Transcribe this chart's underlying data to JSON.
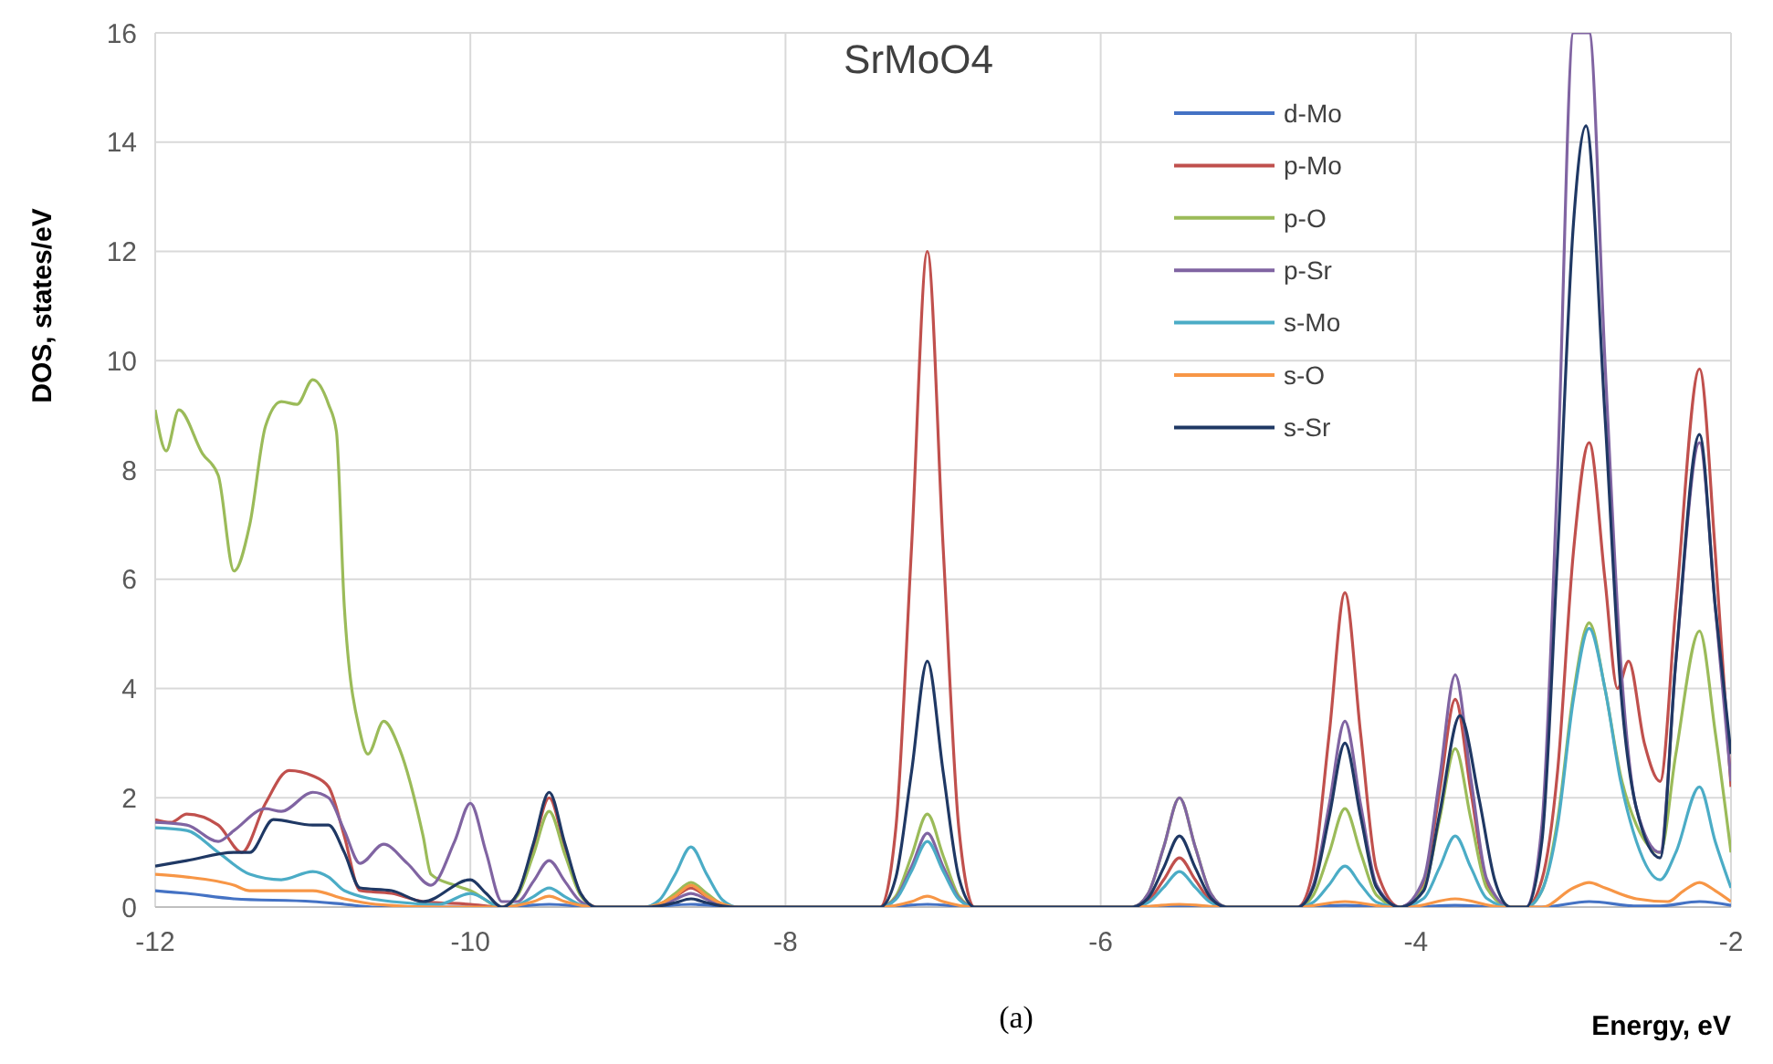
{
  "chart_data": {
    "type": "line",
    "title": "SrMoO4",
    "xlabel": "Energy, eV",
    "ylabel": "DOS, states/eV",
    "annotations": [
      "(a)"
    ],
    "xlim": [
      -12,
      -2
    ],
    "xticks": [
      -12,
      -10,
      -8,
      -6,
      -4,
      -2
    ],
    "ylim": [
      0,
      16
    ],
    "yticks": [
      0,
      2,
      4,
      6,
      8,
      10,
      12,
      14,
      16
    ],
    "grid": true,
    "legend": "top right",
    "marker": "none",
    "line_style": "solid",
    "series": [
      {
        "name": "d-Mo",
        "color": "#4472c4",
        "x": [
          -12,
          -11.8,
          -11.5,
          -11,
          -10.8,
          -10.6,
          -9.8,
          -9.5,
          -9.2,
          -8.9,
          -8.6,
          -8.3,
          -7.4,
          -7.1,
          -6.8,
          -5.8,
          -5.5,
          -5.2,
          -4.75,
          -4.45,
          -4.15,
          -4.05,
          -3.75,
          -3.45,
          -3.2,
          -2.9,
          -2.6,
          -2.45,
          -2.2,
          -2
        ],
        "values": [
          0.3,
          0.25,
          0.15,
          0.1,
          0.05,
          0,
          0,
          0.05,
          0,
          0,
          0.05,
          0,
          0,
          0.05,
          0,
          0,
          0.02,
          0,
          0,
          0.03,
          0,
          0,
          0.03,
          0,
          0,
          0.1,
          0.02,
          0.02,
          0.1,
          0.03
        ]
      },
      {
        "name": "p-Mo",
        "color": "#c0504d",
        "x": [
          -12,
          -11.9,
          -11.8,
          -11.6,
          -11.45,
          -11.3,
          -11.15,
          -11,
          -10.9,
          -10.8,
          -10.7,
          -10.5,
          -10.3,
          -10,
          -9.8,
          -9.7,
          -9.6,
          -9.5,
          -9.4,
          -9.3,
          -9.2,
          -8.9,
          -8.8,
          -8.7,
          -8.6,
          -8.5,
          -8.4,
          -8.3,
          -7.4,
          -7.3,
          -7.2,
          -7.1,
          -7,
          -6.9,
          -6.8,
          -5.8,
          -5.7,
          -5.6,
          -5.5,
          -5.4,
          -5.3,
          -5.2,
          -4.75,
          -4.65,
          -4.55,
          -4.45,
          -4.35,
          -4.25,
          -4.1,
          -3.95,
          -3.85,
          -3.75,
          -3.65,
          -3.55,
          -3.4,
          -3.3,
          -3.2,
          -3.1,
          -3,
          -2.9,
          -2.8,
          -2.72,
          -2.65,
          -2.55,
          -2.45,
          -2.35,
          -2.2,
          -2.1,
          -2
        ],
        "values": [
          1.6,
          1.55,
          1.7,
          1.5,
          1,
          1.9,
          2.5,
          2.4,
          2.2,
          1.3,
          0.3,
          0.25,
          0.1,
          0.05,
          0,
          0.24,
          1.1,
          2,
          1.1,
          0.24,
          0,
          0,
          0.04,
          0.19,
          0.35,
          0.19,
          0.04,
          0,
          0,
          1.44,
          6.6,
          12,
          6.6,
          1.44,
          0,
          0,
          0.11,
          0.5,
          0.9,
          0.5,
          0.11,
          0,
          0,
          0.69,
          3.16,
          5.75,
          3.16,
          0.69,
          0,
          0.46,
          2.1,
          3.8,
          2.1,
          0.46,
          0,
          0,
          0.5,
          2.5,
          6.5,
          8.5,
          6,
          4,
          4.5,
          3,
          2.3,
          5.5,
          9.85,
          6.5,
          2.2
        ]
      },
      {
        "name": "p-O",
        "color": "#9bbb59",
        "x": [
          -12,
          -11.93,
          -11.85,
          -11.7,
          -11.6,
          -11.5,
          -11.4,
          -11.3,
          -11.2,
          -11.1,
          -11,
          -10.9,
          -10.85,
          -10.8,
          -10.7,
          -10.65,
          -10.55,
          -10.45,
          -10.3,
          -10.25,
          -10.1,
          -10,
          -9.8,
          -9.7,
          -9.6,
          -9.5,
          -9.4,
          -9.3,
          -9.2,
          -8.9,
          -8.8,
          -8.7,
          -8.6,
          -8.5,
          -8.4,
          -8.3,
          -7.4,
          -7.3,
          -7.2,
          -7.1,
          -7,
          -6.9,
          -6.8,
          -5.8,
          -5.7,
          -5.6,
          -5.5,
          -5.4,
          -5.3,
          -5.2,
          -4.75,
          -4.65,
          -4.55,
          -4.45,
          -4.35,
          -4.25,
          -4.1,
          -3.95,
          -3.85,
          -3.75,
          -3.65,
          -3.55,
          -3.4,
          -3.3,
          -3.2,
          -3.1,
          -3,
          -2.9,
          -2.8,
          -2.7,
          -2.6,
          -2.45,
          -2.35,
          -2.2,
          -2.1,
          -2
        ],
        "values": [
          9.1,
          8.35,
          9.1,
          8.3,
          7.9,
          6.15,
          7,
          8.8,
          9.25,
          9.2,
          9.65,
          9.2,
          8.7,
          5.5,
          3.2,
          2.8,
          3.4,
          2.9,
          1.3,
          0.6,
          0.4,
          0.3,
          0,
          0.21,
          0.96,
          1.75,
          0.96,
          0.21,
          0,
          0,
          0.05,
          0.25,
          0.45,
          0.25,
          0.05,
          0,
          0,
          0.2,
          0.94,
          1.7,
          0.94,
          0.2,
          0,
          0,
          0.24,
          1.1,
          2,
          1.1,
          0.24,
          0,
          0,
          0.22,
          0.99,
          1.8,
          0.99,
          0.22,
          0,
          0.35,
          1.6,
          2.9,
          1.6,
          0.35,
          0,
          0,
          0.3,
          1.6,
          3.9,
          5.2,
          4,
          2.4,
          1.5,
          1,
          2.8,
          5.05,
          3.2,
          1
        ]
      },
      {
        "name": "p-Sr",
        "color": "#8064a2",
        "x": [
          -12,
          -11.8,
          -11.6,
          -11.5,
          -11.3,
          -11.2,
          -11,
          -10.9,
          -10.8,
          -10.7,
          -10.55,
          -10.4,
          -10.25,
          -10.1,
          -10,
          -9.9,
          -9.8,
          -9.7,
          -9.6,
          -9.5,
          -9.4,
          -9.3,
          -9.2,
          -8.9,
          -8.8,
          -8.7,
          -8.6,
          -8.5,
          -8.4,
          -8.3,
          -7.4,
          -7.3,
          -7.2,
          -7.1,
          -7,
          -6.9,
          -6.8,
          -5.8,
          -5.7,
          -5.6,
          -5.5,
          -5.4,
          -5.3,
          -5.2,
          -4.75,
          -4.65,
          -4.55,
          -4.45,
          -4.35,
          -4.25,
          -4.1,
          -3.95,
          -3.85,
          -3.75,
          -3.65,
          -3.55,
          -3.4,
          -3.3,
          -3.2,
          -3.1,
          -3,
          -2.95,
          -2.9,
          -2.8,
          -2.7,
          -2.6,
          -2.45,
          -2.35,
          -2.2,
          -2.1,
          -2
        ],
        "values": [
          1.55,
          1.5,
          1.2,
          1.4,
          1.8,
          1.75,
          2.1,
          2,
          1.4,
          0.8,
          1.15,
          0.8,
          0.4,
          1.2,
          1.9,
          1,
          0.1,
          0.1,
          0.47,
          0.85,
          0.47,
          0.1,
          0,
          0,
          0.03,
          0.14,
          0.25,
          0.14,
          0.03,
          0,
          0,
          0.16,
          0.74,
          1.35,
          0.74,
          0.16,
          0,
          0,
          0.24,
          1.1,
          2,
          1.1,
          0.24,
          0,
          0,
          0.41,
          1.87,
          3.4,
          1.87,
          0.41,
          0,
          0.51,
          2.34,
          4.25,
          2.34,
          0.51,
          0,
          0,
          1.5,
          8,
          16,
          16,
          16,
          10,
          4.5,
          1.8,
          1,
          4.5,
          8.5,
          5.5,
          2.3
        ]
      },
      {
        "name": "s-Mo",
        "color": "#4bacc6",
        "x": [
          -12,
          -11.8,
          -11.6,
          -11.4,
          -11.2,
          -11,
          -10.9,
          -10.8,
          -10.5,
          -10.2,
          -10,
          -9.8,
          -9.7,
          -9.6,
          -9.5,
          -9.4,
          -9.3,
          -9.2,
          -8.9,
          -8.8,
          -8.7,
          -8.6,
          -8.5,
          -8.4,
          -8.3,
          -7.4,
          -7.3,
          -7.2,
          -7.1,
          -7,
          -6.9,
          -6.8,
          -5.8,
          -5.7,
          -5.6,
          -5.5,
          -5.4,
          -5.3,
          -5.2,
          -4.75,
          -4.65,
          -4.55,
          -4.45,
          -4.35,
          -4.25,
          -4.1,
          -3.95,
          -3.85,
          -3.75,
          -3.65,
          -3.55,
          -3.4,
          -3.3,
          -3.2,
          -3.1,
          -3,
          -2.9,
          -2.8,
          -2.7,
          -2.6,
          -2.45,
          -2.35,
          -2.2,
          -2.1,
          -2
        ],
        "values": [
          1.45,
          1.4,
          1,
          0.6,
          0.5,
          0.65,
          0.55,
          0.3,
          0.1,
          0.05,
          0.25,
          0,
          0.04,
          0.19,
          0.35,
          0.19,
          0.04,
          0,
          0,
          0.13,
          0.6,
          1.1,
          0.6,
          0.13,
          0,
          0,
          0.14,
          0.66,
          1.2,
          0.66,
          0.14,
          0,
          0,
          0.08,
          0.36,
          0.65,
          0.36,
          0.08,
          0,
          0,
          0.09,
          0.41,
          0.75,
          0.41,
          0.09,
          0,
          0.16,
          0.72,
          1.3,
          0.72,
          0.16,
          0,
          0,
          0.3,
          1.5,
          3.8,
          5.1,
          4,
          2.3,
          1.2,
          0.5,
          1,
          2.2,
          1.2,
          0.35
        ]
      },
      {
        "name": "s-O",
        "color": "#f79646",
        "x": [
          -12,
          -11.8,
          -11.5,
          -11.4,
          -11.2,
          -11,
          -10.8,
          -10.6,
          -10.2,
          -9.8,
          -9.6,
          -9.5,
          -9.4,
          -9.2,
          -8.9,
          -8.7,
          -8.6,
          -8.5,
          -8.3,
          -7.4,
          -7.2,
          -7.1,
          -7,
          -6.8,
          -5.8,
          -5.5,
          -5.2,
          -4.75,
          -4.45,
          -4.15,
          -4.05,
          -3.75,
          -3.45,
          -3.2,
          -3,
          -2.9,
          -2.8,
          -2.6,
          -2.4,
          -2.3,
          -2.2,
          -2.1,
          -2
        ],
        "values": [
          0.6,
          0.55,
          0.4,
          0.3,
          0.3,
          0.3,
          0.15,
          0.05,
          0,
          0,
          0.1,
          0.2,
          0.1,
          0,
          0,
          0.2,
          0.4,
          0.2,
          0,
          0,
          0.1,
          0.2,
          0.1,
          0,
          0,
          0.05,
          0,
          0,
          0.1,
          0,
          0,
          0.15,
          0,
          0,
          0.35,
          0.45,
          0.35,
          0.15,
          0.1,
          0.3,
          0.45,
          0.3,
          0.1
        ]
      },
      {
        "name": "s-Sr",
        "color": "#1f3864",
        "x": [
          -12,
          -11.8,
          -11.5,
          -11.4,
          -11.25,
          -11,
          -10.9,
          -10.8,
          -10.7,
          -10.5,
          -10.3,
          -10,
          -9.9,
          -9.8,
          -9.7,
          -9.6,
          -9.5,
          -9.4,
          -9.3,
          -9.2,
          -8.9,
          -8.8,
          -8.7,
          -8.6,
          -8.5,
          -8.4,
          -8.3,
          -7.4,
          -7.3,
          -7.2,
          -7.1,
          -7,
          -6.9,
          -6.8,
          -5.8,
          -5.7,
          -5.6,
          -5.5,
          -5.4,
          -5.3,
          -5.2,
          -4.75,
          -4.65,
          -4.55,
          -4.45,
          -4.35,
          -4.25,
          -4.1,
          -3.95,
          -3.85,
          -3.72,
          -3.6,
          -3.5,
          -3.4,
          -3.3,
          -3.2,
          -3.1,
          -3,
          -2.92,
          -2.8,
          -2.7,
          -2.6,
          -2.45,
          -2.35,
          -2.2,
          -2.1,
          -2
        ],
        "values": [
          0.75,
          0.85,
          1,
          1,
          1.6,
          1.5,
          1.5,
          1,
          0.35,
          0.3,
          0.1,
          0.5,
          0.25,
          0,
          0.25,
          1.16,
          2.1,
          1.16,
          0.25,
          0,
          0,
          0.02,
          0.08,
          0.15,
          0.08,
          0.02,
          0,
          0,
          0.54,
          2.48,
          4.5,
          2.48,
          0.54,
          0,
          0,
          0.16,
          0.72,
          1.3,
          0.72,
          0.16,
          0,
          0,
          0.36,
          1.65,
          3,
          1.65,
          0.36,
          0,
          0.3,
          1.7,
          3.5,
          2,
          0.5,
          0,
          0,
          1.2,
          6.5,
          12.5,
          14.3,
          9,
          4,
          1.8,
          0.9,
          4.5,
          8.65,
          5.5,
          2.8
        ]
      }
    ]
  }
}
